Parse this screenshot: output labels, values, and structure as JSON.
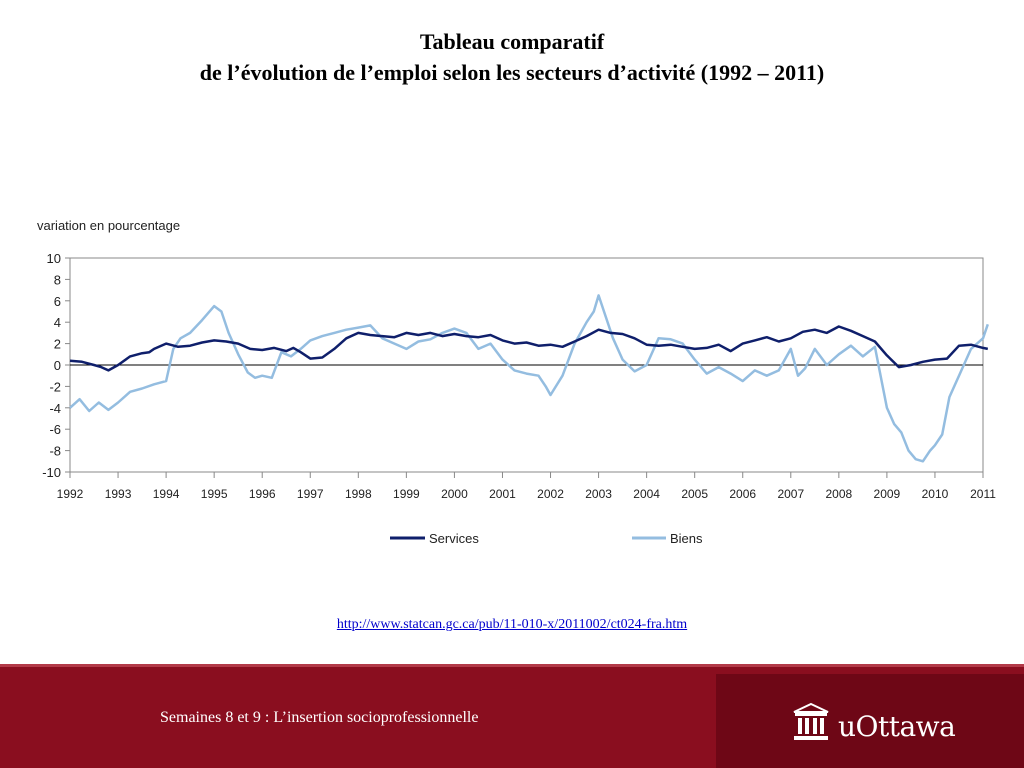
{
  "slide": {
    "title_line1": "Tableau comparatif",
    "title_line2": "de l’évolution de l’emploi selon les secteurs d’activité (1992 – 2011)",
    "source_url": "http://www.statcan.gc.ca/pub/11-010-x/2011002/ct024-fra.htm"
  },
  "footer": {
    "text": "Semaines 8 et 9 : L’insertion socioprofessionnelle",
    "logo_text": "uOttawa"
  },
  "colors": {
    "services": "#0f1f6b",
    "biens": "#94bde0",
    "footer_bg": "#8a0e1f"
  },
  "chart_data": {
    "type": "line",
    "ylabel": "variation en pourcentage",
    "ylim": [
      -10,
      10
    ],
    "yticks": [
      10,
      8,
      6,
      4,
      2,
      0,
      -2,
      -4,
      -6,
      -8,
      -10
    ],
    "xlim": [
      1992,
      2011
    ],
    "xticks": [
      "1992",
      "1993",
      "1994",
      "1995",
      "1996",
      "1997",
      "1998",
      "1999",
      "2000",
      "2001",
      "2002",
      "2003",
      "2004",
      "2005",
      "2006",
      "2007",
      "2008",
      "2009",
      "2010",
      "2011"
    ],
    "legend_position": "bottom",
    "series": [
      {
        "name": "Services",
        "x": [
          1992.0,
          1992.25,
          1992.5,
          1992.65,
          1992.8,
          1993.0,
          1993.25,
          1993.5,
          1993.65,
          1993.75,
          1994.0,
          1994.25,
          1994.5,
          1994.75,
          1995.0,
          1995.25,
          1995.5,
          1995.75,
          1996.0,
          1996.25,
          1996.5,
          1996.65,
          1996.8,
          1997.0,
          1997.25,
          1997.5,
          1997.75,
          1998.0,
          1998.25,
          1998.5,
          1998.75,
          1999.0,
          1999.25,
          1999.5,
          1999.75,
          2000.0,
          2000.25,
          2000.5,
          2000.75,
          2001.0,
          2001.25,
          2001.5,
          2001.75,
          2002.0,
          2002.25,
          2002.5,
          2002.75,
          2003.0,
          2003.25,
          2003.5,
          2003.75,
          2004.0,
          2004.25,
          2004.5,
          2004.75,
          2005.0,
          2005.25,
          2005.5,
          2005.75,
          2006.0,
          2006.25,
          2006.5,
          2006.75,
          2007.0,
          2007.25,
          2007.5,
          2007.75,
          2008.0,
          2008.25,
          2008.5,
          2008.75,
          2009.0,
          2009.25,
          2009.5,
          2009.75,
          2010.0,
          2010.25,
          2010.5,
          2010.75,
          2011.0,
          2011.1
        ],
        "values": [
          0.4,
          0.3,
          0.0,
          -0.2,
          -0.5,
          0.0,
          0.8,
          1.1,
          1.2,
          1.5,
          2.0,
          1.7,
          1.8,
          2.1,
          2.3,
          2.2,
          2.0,
          1.5,
          1.4,
          1.6,
          1.3,
          1.6,
          1.2,
          0.6,
          0.7,
          1.5,
          2.5,
          3.0,
          2.8,
          2.7,
          2.6,
          3.0,
          2.8,
          3.0,
          2.7,
          2.9,
          2.7,
          2.6,
          2.8,
          2.3,
          2.0,
          2.1,
          1.8,
          1.9,
          1.7,
          2.2,
          2.7,
          3.3,
          3.0,
          2.9,
          2.5,
          1.9,
          1.8,
          1.9,
          1.7,
          1.5,
          1.6,
          1.9,
          1.3,
          2.0,
          2.3,
          2.6,
          2.2,
          2.5,
          3.1,
          3.3,
          3.0,
          3.6,
          3.2,
          2.7,
          2.2,
          0.9,
          -0.2,
          0.0,
          0.3,
          0.5,
          0.6,
          1.8,
          1.9,
          1.6,
          1.5
        ]
      },
      {
        "name": "Biens",
        "x": [
          1992.0,
          1992.2,
          1992.4,
          1992.6,
          1992.8,
          1993.0,
          1993.25,
          1993.5,
          1993.75,
          1994.0,
          1994.15,
          1994.3,
          1994.5,
          1994.75,
          1995.0,
          1995.15,
          1995.3,
          1995.5,
          1995.7,
          1995.85,
          1996.0,
          1996.2,
          1996.4,
          1996.6,
          1996.8,
          1997.0,
          1997.25,
          1997.5,
          1997.75,
          1998.0,
          1998.25,
          1998.5,
          1998.75,
          1999.0,
          1999.25,
          1999.5,
          1999.75,
          2000.0,
          2000.25,
          2000.5,
          2000.75,
          2001.0,
          2001.25,
          2001.5,
          2001.75,
          2001.9,
          2002.0,
          2002.25,
          2002.5,
          2002.75,
          2002.9,
          2003.0,
          2003.15,
          2003.3,
          2003.5,
          2003.75,
          2004.0,
          2004.25,
          2004.5,
          2004.75,
          2005.0,
          2005.25,
          2005.5,
          2005.75,
          2006.0,
          2006.25,
          2006.5,
          2006.75,
          2007.0,
          2007.15,
          2007.3,
          2007.5,
          2007.75,
          2008.0,
          2008.25,
          2008.5,
          2008.75,
          2009.0,
          2009.15,
          2009.3,
          2009.45,
          2009.6,
          2009.75,
          2009.9,
          2010.0,
          2010.15,
          2010.3,
          2010.5,
          2010.75,
          2011.0,
          2011.1
        ],
        "values": [
          -4.0,
          -3.2,
          -4.3,
          -3.5,
          -4.2,
          -3.5,
          -2.5,
          -2.2,
          -1.8,
          -1.5,
          1.5,
          2.5,
          3.0,
          4.2,
          5.5,
          5.0,
          3.0,
          1.0,
          -0.7,
          -1.2,
          -1.0,
          -1.2,
          1.2,
          0.8,
          1.5,
          2.3,
          2.7,
          3.0,
          3.3,
          3.5,
          3.7,
          2.5,
          2.0,
          1.5,
          2.2,
          2.4,
          3.0,
          3.4,
          3.0,
          1.5,
          2.0,
          0.5,
          -0.5,
          -0.8,
          -1.0,
          -2.0,
          -2.8,
          -1.0,
          2.0,
          4.0,
          5.0,
          6.5,
          4.5,
          2.5,
          0.5,
          -0.6,
          0.0,
          2.5,
          2.4,
          2.0,
          0.5,
          -0.8,
          -0.2,
          -0.8,
          -1.5,
          -0.5,
          -1.0,
          -0.5,
          1.5,
          -1.0,
          -0.3,
          1.5,
          0.0,
          1.0,
          1.8,
          0.8,
          1.7,
          -4.0,
          -5.5,
          -6.3,
          -8.0,
          -8.8,
          -9.0,
          -8.0,
          -7.5,
          -6.5,
          -3.0,
          -1.0,
          1.5,
          2.5,
          3.8
        ]
      }
    ]
  }
}
